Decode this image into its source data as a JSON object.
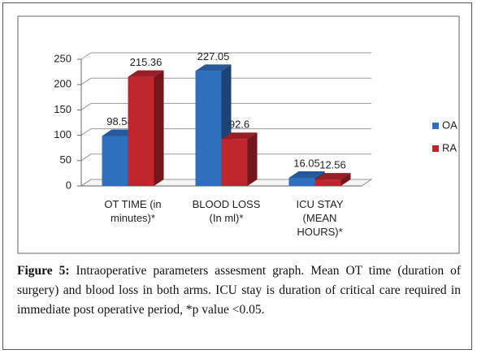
{
  "chart_data": {
    "type": "bar3d",
    "categories": [
      "OT TIME (in minutes)*",
      "BLOOD LOSS (In ml)*",
      "ICU STAY (MEAN HOURS)*"
    ],
    "series": [
      {
        "name": "OA",
        "color": "#2f6fc0",
        "values": [
          98.54,
          227.05,
          16.05
        ]
      },
      {
        "name": "RA",
        "color": "#c1262e",
        "values": [
          215.36,
          92.6,
          12.56
        ]
      }
    ],
    "ylim": [
      0,
      250
    ],
    "yticks": [
      0,
      50,
      100,
      150,
      200,
      250
    ],
    "grid": true,
    "legend": "right"
  },
  "caption": {
    "label": "Figure 5:",
    "text": "Intraoperative parameters assesment graph. Mean OT time (duration of surgery) and blood loss in both arms. ICU stay is duration of critical care required in immediate post operative period, *p value <0.05."
  }
}
